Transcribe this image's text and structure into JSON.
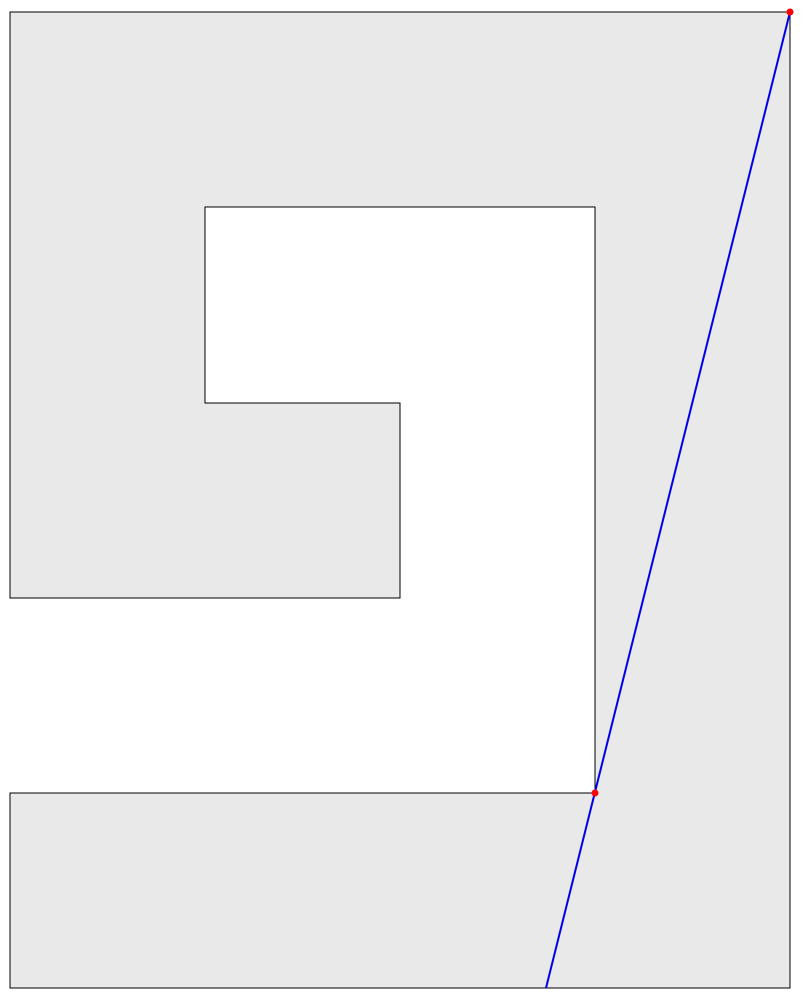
{
  "diagram": {
    "colors": {
      "background": "#ffffff",
      "region_fill": "#e9e9e9",
      "outline": "#000000",
      "line": "#0000ee",
      "point": "#ff0000"
    }
  }
}
